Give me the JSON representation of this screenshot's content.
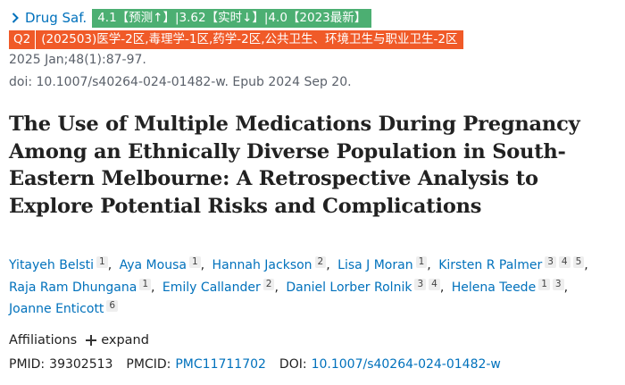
{
  "journal": {
    "name": "Drug Saf.",
    "metric_badge": "4.1【预测↑】|3.62【实时↓】|4.0【2023最新】"
  },
  "quartile": {
    "q": "Q2",
    "categories": "(202503)医学-2区,毒理学-1区,药学-2区,公共卫生、环境卫生与职业卫生-2区"
  },
  "citation": "2025 Jan;48(1):87-97.",
  "doi_line": "doi: 10.1007/s40264-024-01482-w. Epub 2024 Sep 20.",
  "title_lines": [
    "The Use of Multiple Medications During Pregnancy",
    "Among an Ethnically Diverse Population in South-",
    "Eastern Melbourne: A Retrospective Analysis to",
    "Explore Potential Risks and Complications"
  ],
  "authors": [
    {
      "name": "Yitayeh Belsti",
      "affs": [
        "1"
      ]
    },
    {
      "name": "Aya Mousa",
      "affs": [
        "1"
      ]
    },
    {
      "name": "Hannah Jackson",
      "affs": [
        "2"
      ]
    },
    {
      "name": "Lisa J Moran",
      "affs": [
        "1"
      ]
    },
    {
      "name": "Kirsten R Palmer",
      "affs": [
        "3",
        "4",
        "5"
      ]
    },
    {
      "name": "Raja Ram Dhungana",
      "affs": [
        "1"
      ]
    },
    {
      "name": "Emily Callander",
      "affs": [
        "2"
      ]
    },
    {
      "name": "Daniel Lorber Rolnik",
      "affs": [
        "3",
        "4"
      ]
    },
    {
      "name": "Helena Teede",
      "affs": [
        "1",
        "3"
      ]
    },
    {
      "name": "Joanne Enticott",
      "affs": [
        "6"
      ]
    }
  ],
  "affiliations": {
    "label": "Affiliations",
    "expand_label": "expand"
  },
  "identifiers": {
    "pmid_label": "PMID:",
    "pmid": "39302513",
    "pmcid_label": "PMCID:",
    "pmcid": "PMC11711702",
    "doi_label": "DOI:",
    "doi": "10.1007/s40264-024-01482-w"
  },
  "colors": {
    "link": "#0071bc",
    "badge_green": "#4caf72",
    "badge_orange": "#f05a28"
  },
  "icons": {
    "journal": "chevron-right-icon",
    "expand": "plus-icon"
  }
}
